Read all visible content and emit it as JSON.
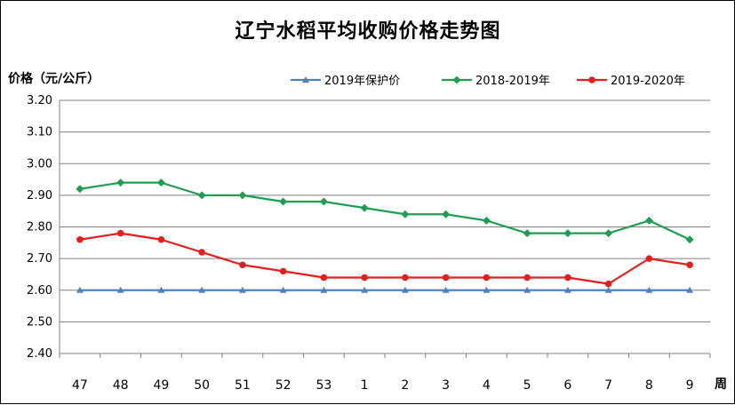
{
  "chart_data": {
    "type": "line",
    "title": "辽宁水稻平均收购价格走势图",
    "ylabel": "价格（元/公斤）",
    "xlabel": "周",
    "ylim": [
      2.4,
      3.2
    ],
    "yticks": [
      "2.40",
      "2.50",
      "2.60",
      "2.70",
      "2.80",
      "2.90",
      "3.00",
      "3.10",
      "3.20"
    ],
    "categories": [
      "47",
      "48",
      "49",
      "50",
      "51",
      "52",
      "53",
      "1",
      "2",
      "3",
      "4",
      "5",
      "6",
      "7",
      "8",
      "9"
    ],
    "grid": true,
    "legend_position": "top-right",
    "series": [
      {
        "name": "2019年保护价",
        "color": "#4f81bd",
        "marker": "triangle",
        "values": [
          2.6,
          2.6,
          2.6,
          2.6,
          2.6,
          2.6,
          2.6,
          2.6,
          2.6,
          2.6,
          2.6,
          2.6,
          2.6,
          2.6,
          2.6,
          2.6
        ]
      },
      {
        "name": "2018-2019年",
        "color": "#1e9e50",
        "marker": "diamond",
        "values": [
          2.92,
          2.94,
          2.94,
          2.9,
          2.9,
          2.88,
          2.88,
          2.86,
          2.84,
          2.84,
          2.82,
          2.78,
          2.78,
          2.78,
          2.82,
          2.76
        ]
      },
      {
        "name": "2019-2020年",
        "color": "#e51d1d",
        "marker": "circle",
        "values": [
          2.76,
          2.78,
          2.76,
          2.72,
          2.68,
          2.66,
          2.64,
          2.64,
          2.64,
          2.64,
          2.64,
          2.64,
          2.64,
          2.62,
          2.7,
          2.68
        ]
      }
    ]
  }
}
